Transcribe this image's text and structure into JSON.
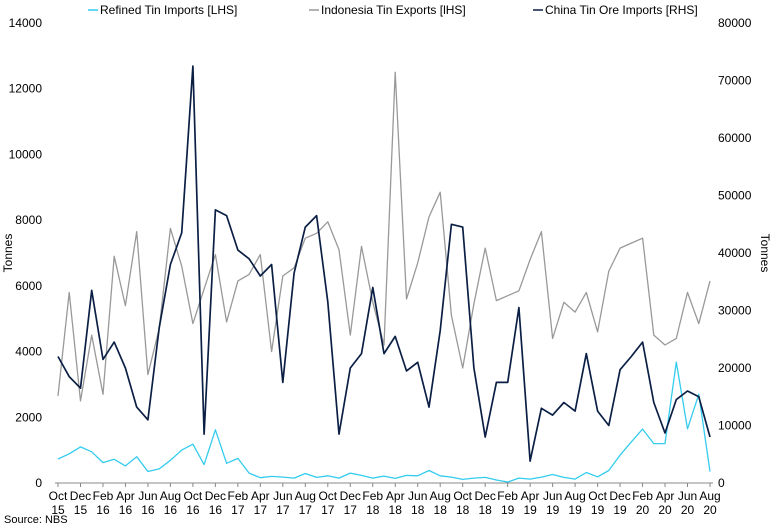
{
  "chart_data": {
    "type": "line",
    "title": "",
    "source": "Source: NBS",
    "ylabel_left": "Tonnes",
    "ylabel_right": "Tonnes",
    "ylim_left": [
      0,
      14000
    ],
    "ylim_right": [
      0,
      80000
    ],
    "yticks_left": [
      0,
      2000,
      4000,
      6000,
      8000,
      10000,
      12000,
      14000
    ],
    "yticks_right": [
      0,
      10000,
      20000,
      30000,
      40000,
      50000,
      60000,
      70000,
      80000
    ],
    "grid": false,
    "legend_position": "top",
    "x": [
      "Oct 15",
      "Nov 15",
      "Dec 15",
      "Jan 16",
      "Feb 16",
      "Mar 16",
      "Apr 16",
      "May 16",
      "Jun 16",
      "Jul 16",
      "Aug 16",
      "Sep 16",
      "Oct 16",
      "Nov 16",
      "Dec 16",
      "Jan 17",
      "Feb 17",
      "Mar 17",
      "Apr 17",
      "May 17",
      "Jun 17",
      "Jul 17",
      "Aug 17",
      "Sep 17",
      "Oct 17",
      "Nov 17",
      "Dec 17",
      "Jan 18",
      "Feb 18",
      "Mar 18",
      "Apr 18",
      "May 18",
      "Jun 18",
      "Jul 18",
      "Aug 18",
      "Sep 18",
      "Oct 18",
      "Nov 18",
      "Dec 18",
      "Jan 19",
      "Feb 19",
      "Mar 19",
      "Apr 19",
      "May 19",
      "Jun 19",
      "Jul 19",
      "Aug 19",
      "Sep 19",
      "Oct 19",
      "Nov 19",
      "Dec 19",
      "Jan 20",
      "Feb 20",
      "Mar 20",
      "Apr 20",
      "May 20",
      "Jun 20",
      "Jul 20",
      "Aug 20"
    ],
    "x_tick_labels": [
      {
        "month": "Oct",
        "year": "15"
      },
      {
        "month": "Dec",
        "year": "15"
      },
      {
        "month": "Feb",
        "year": "16"
      },
      {
        "month": "Apr",
        "year": "16"
      },
      {
        "month": "Jun",
        "year": "16"
      },
      {
        "month": "Aug",
        "year": "16"
      },
      {
        "month": "Oct",
        "year": "16"
      },
      {
        "month": "Dec",
        "year": "16"
      },
      {
        "month": "Feb",
        "year": "17"
      },
      {
        "month": "Apr",
        "year": "17"
      },
      {
        "month": "Jun",
        "year": "17"
      },
      {
        "month": "Aug",
        "year": "17"
      },
      {
        "month": "Oct",
        "year": "17"
      },
      {
        "month": "Dec",
        "year": "17"
      },
      {
        "month": "Feb",
        "year": "18"
      },
      {
        "month": "Apr",
        "year": "18"
      },
      {
        "month": "Jun",
        "year": "18"
      },
      {
        "month": "Aug",
        "year": "18"
      },
      {
        "month": "Oct",
        "year": "18"
      },
      {
        "month": "Dec",
        "year": "18"
      },
      {
        "month": "Feb",
        "year": "19"
      },
      {
        "month": "Apr",
        "year": "19"
      },
      {
        "month": "Jun",
        "year": "19"
      },
      {
        "month": "Aug",
        "year": "19"
      },
      {
        "month": "Oct",
        "year": "19"
      },
      {
        "month": "Dec",
        "year": "19"
      },
      {
        "month": "Feb",
        "year": "20"
      },
      {
        "month": "Apr",
        "year": "20"
      },
      {
        "month": "Jun",
        "year": "20"
      },
      {
        "month": "Aug",
        "year": "20"
      }
    ],
    "series": [
      {
        "name": "Refined Tin Imports [LHS]",
        "axis": "left",
        "color": "#33ccee",
        "values": [
          730,
          890,
          1100,
          950,
          620,
          720,
          520,
          800,
          350,
          430,
          690,
          1000,
          1180,
          560,
          1620,
          600,
          750,
          300,
          160,
          200,
          180,
          150,
          290,
          170,
          220,
          150,
          300,
          230,
          150,
          210,
          140,
          230,
          220,
          380,
          220,
          180,
          110,
          150,
          170,
          90,
          30,
          150,
          120,
          180,
          260,
          170,
          120,
          320,
          190,
          380,
          850,
          1250,
          1640,
          1200,
          1200,
          3680,
          1650,
          2700,
          350
        ]
      },
      {
        "name": "Indonesia Tin Exports [lHS]",
        "axis": "left",
        "color": "#999999",
        "values": [
          2650,
          5800,
          2500,
          4500,
          2700,
          6900,
          5400,
          7650,
          3300,
          4700,
          7750,
          6600,
          4850,
          5900,
          6950,
          4900,
          6150,
          6350,
          6950,
          4000,
          6300,
          6550,
          7450,
          7600,
          7950,
          7100,
          4500,
          7200,
          5500,
          4200,
          12500,
          5600,
          6700,
          8100,
          8850,
          5100,
          3500,
          5450,
          7150,
          5550,
          5700,
          5850,
          6800,
          7650,
          4400,
          5500,
          5200,
          5800,
          4600,
          6450,
          7150,
          7300,
          7450,
          4500,
          4200,
          4400,
          5800,
          4850,
          6150
        ]
      },
      {
        "name": "China Tin Ore Imports [RHS]",
        "axis": "right",
        "color": "#0b1f45",
        "values": [
          22000,
          18500,
          16500,
          33500,
          21500,
          24500,
          20000,
          13200,
          11000,
          27000,
          38000,
          43500,
          72500,
          8500,
          47500,
          46500,
          40500,
          39000,
          36000,
          38000,
          17500,
          36500,
          44500,
          46500,
          31500,
          8500,
          20000,
          22500,
          34000,
          22500,
          25500,
          19500,
          21000,
          13200,
          26500,
          45000,
          44500,
          20000,
          8000,
          17500,
          17500,
          30500,
          3800,
          13000,
          11800,
          14000,
          12500,
          22500,
          12500,
          10000,
          19700,
          22000,
          24500,
          14000,
          8700,
          14500,
          16000,
          15000,
          8000
        ]
      }
    ]
  }
}
